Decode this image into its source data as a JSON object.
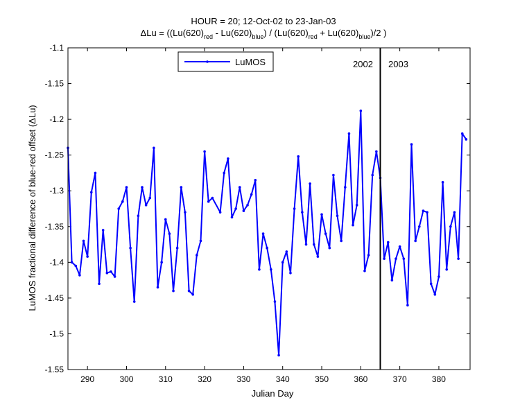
{
  "chart_data": {
    "type": "line",
    "title_line1": "HOUR = 20; 12-Oct-02 to 23-Jan-03",
    "title_line2": {
      "p1": "ΔLu = ((Lu(620)",
      "s1": "red",
      "p2": " - Lu(620)",
      "s2": "blue",
      "p3": ") / (Lu(620)",
      "s3": "red",
      "p4": " + Lu(620)",
      "s4": "blue",
      "p5": ")/2  )"
    },
    "xlabel": "Julian Day",
    "ylabel": "LuMOS fractional difference of blue-red offset (ΔLu)",
    "xlim": [
      285,
      388
    ],
    "ylim": [
      -1.55,
      -1.1
    ],
    "xticks": [
      290,
      300,
      310,
      320,
      330,
      340,
      350,
      360,
      370,
      380
    ],
    "yticks": [
      -1.1,
      -1.15,
      -1.2,
      -1.25,
      -1.3,
      -1.35,
      -1.4,
      -1.45,
      -1.5,
      -1.55
    ],
    "grid": false,
    "legend_position": "top-left",
    "year_marker": {
      "x": 365,
      "label_left": "2002",
      "label_right": "2003"
    },
    "series": [
      {
        "name": "LuMOS",
        "color": "#0000ff",
        "marker": "dot",
        "x": [
          285,
          286,
          287,
          288,
          289,
          290,
          291,
          292,
          293,
          294,
          295,
          296,
          297,
          298,
          299,
          300,
          301,
          302,
          303,
          304,
          305,
          306,
          307,
          308,
          309,
          310,
          311,
          312,
          313,
          314,
          315,
          316,
          317,
          318,
          319,
          320,
          321,
          322,
          324,
          325,
          326,
          327,
          328,
          329,
          330,
          331,
          332,
          333,
          334,
          335,
          336,
          337,
          338,
          339,
          340,
          341,
          342,
          343,
          344,
          345,
          346,
          347,
          348,
          349,
          350,
          351,
          352,
          353,
          354,
          355,
          356,
          357,
          358,
          359,
          360,
          361,
          362,
          363,
          364,
          365,
          366,
          367,
          368,
          369,
          370,
          371,
          372,
          373,
          374,
          375,
          376,
          377,
          378,
          379,
          380,
          381,
          382,
          383,
          384,
          385,
          386,
          387
        ],
        "y": [
          -1.24,
          -1.4,
          -1.405,
          -1.418,
          -1.37,
          -1.392,
          -1.302,
          -1.275,
          -1.43,
          -1.355,
          -1.415,
          -1.413,
          -1.42,
          -1.325,
          -1.315,
          -1.295,
          -1.38,
          -1.455,
          -1.335,
          -1.295,
          -1.32,
          -1.31,
          -1.24,
          -1.435,
          -1.4,
          -1.34,
          -1.36,
          -1.44,
          -1.38,
          -1.295,
          -1.33,
          -1.44,
          -1.445,
          -1.39,
          -1.37,
          -1.245,
          -1.315,
          -1.31,
          -1.33,
          -1.275,
          -1.255,
          -1.337,
          -1.325,
          -1.295,
          -1.328,
          -1.32,
          -1.305,
          -1.285,
          -1.41,
          -1.36,
          -1.38,
          -1.41,
          -1.455,
          -1.53,
          -1.4,
          -1.385,
          -1.415,
          -1.325,
          -1.252,
          -1.33,
          -1.375,
          -1.29,
          -1.375,
          -1.392,
          -1.333,
          -1.36,
          -1.38,
          -1.278,
          -1.335,
          -1.37,
          -1.295,
          -1.22,
          -1.348,
          -1.32,
          -1.188,
          -1.412,
          -1.39,
          -1.278,
          -1.245,
          -1.282,
          -1.395,
          -1.372,
          -1.425,
          -1.395,
          -1.378,
          -1.395,
          -1.46,
          -1.235,
          -1.37,
          -1.35,
          -1.328,
          -1.33,
          -1.43,
          -1.445,
          -1.42,
          -1.288,
          -1.41,
          -1.35,
          -1.33,
          -1.395,
          -1.22,
          -1.228
        ]
      }
    ]
  }
}
